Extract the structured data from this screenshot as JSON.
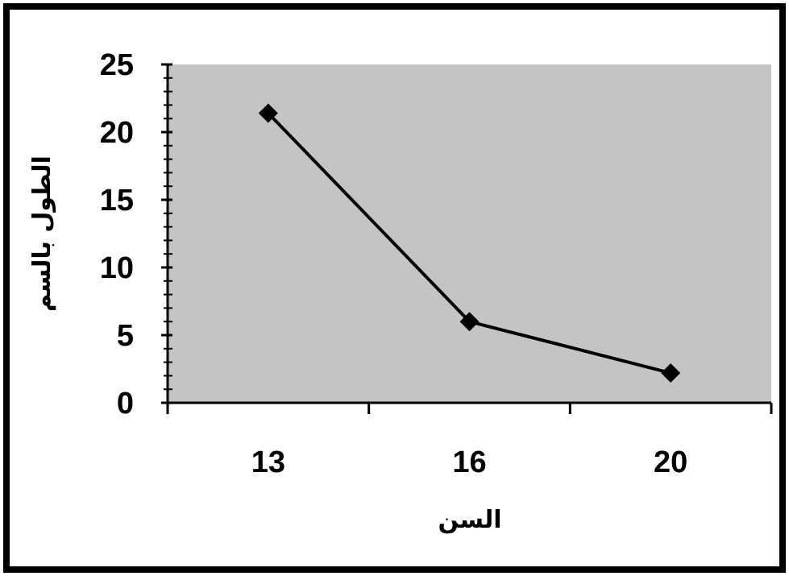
{
  "chart_data": {
    "type": "line",
    "x": [
      "13",
      "16",
      "20"
    ],
    "series": [
      {
        "values": [
          21.4,
          6.0,
          2.2
        ]
      }
    ],
    "xlabel": "السن",
    "ylabel": "الطول بالسم",
    "ylim": [
      0,
      25
    ],
    "yticks": [
      "0",
      "5",
      "10",
      "15",
      "20",
      "25"
    ],
    "grid": false,
    "legend": "none",
    "colors": {
      "line": "#000000",
      "plot_background": "#a9a9a9",
      "marker": "#000000"
    }
  }
}
